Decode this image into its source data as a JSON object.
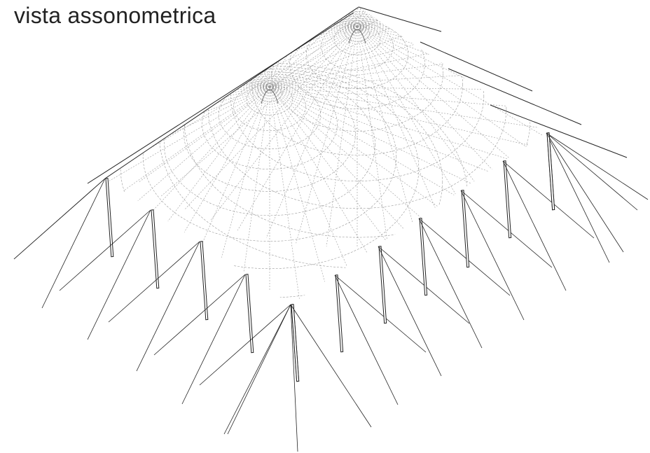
{
  "title": "vista assonometrica"
}
